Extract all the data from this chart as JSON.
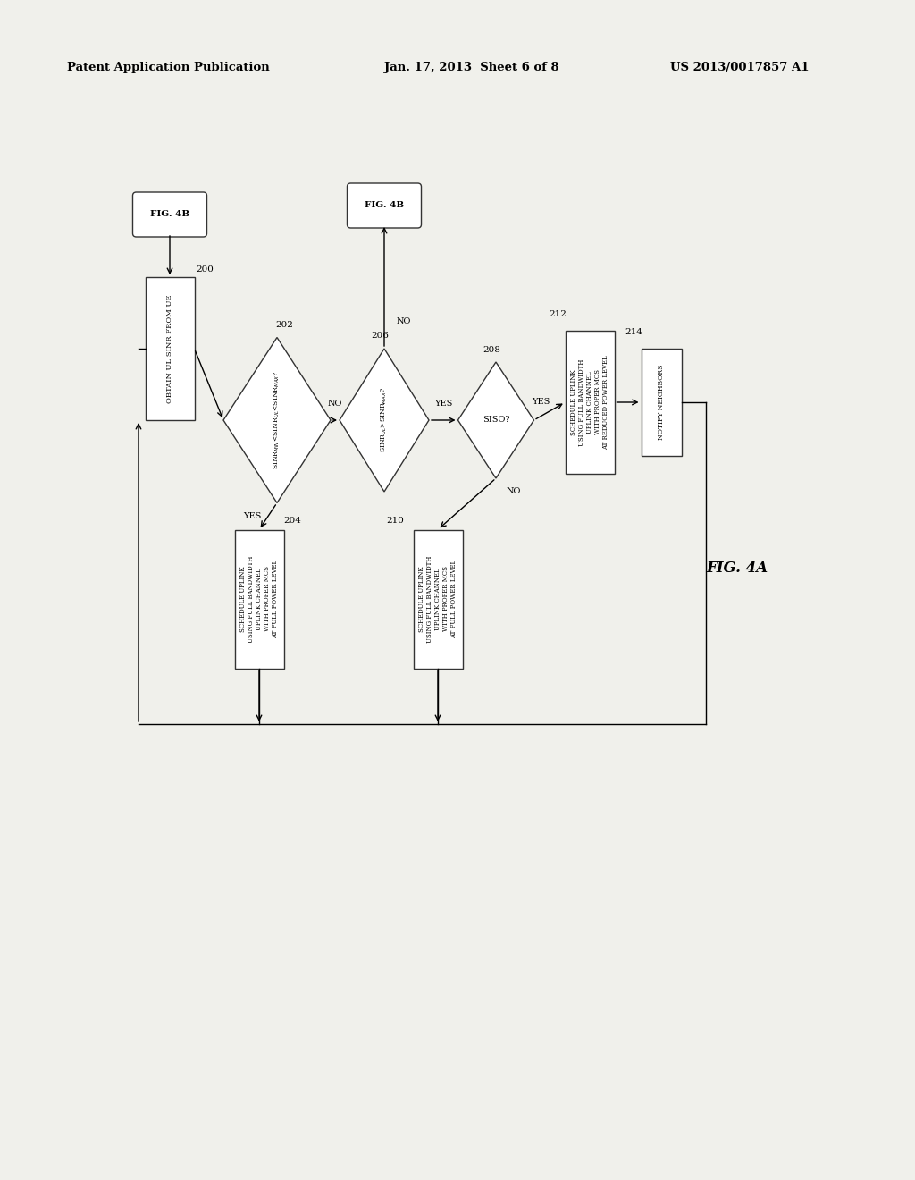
{
  "bg_color": "#f5f5f0",
  "header_left": "Patent Application Publication",
  "header_center": "Jan. 17, 2013  Sheet 6 of 8",
  "header_right": "US 2013/0017857 A1",
  "fig_label": "FIG. 4A"
}
